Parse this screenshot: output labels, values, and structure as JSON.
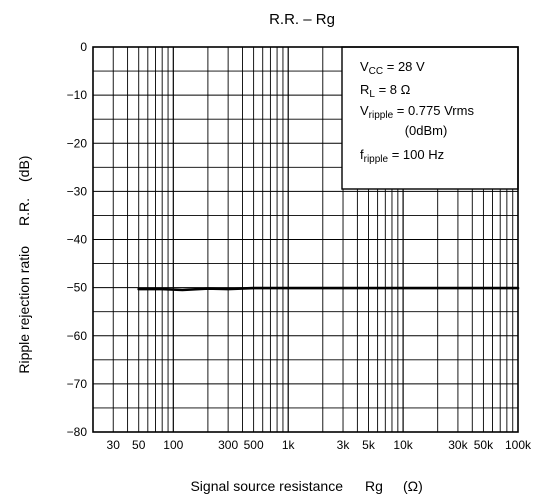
{
  "chart_data": {
    "type": "line",
    "title": "R.R. – Rg",
    "xlabel": "Signal source resistance",
    "xlabel_symbol": "Rg",
    "xlabel_unit": "(Ω)",
    "ylabel": "Ripple rejection ratio",
    "ylabel_symbol": "R.R.",
    "ylabel_unit": "(dB)",
    "x_scale": "log",
    "xlim": [
      20,
      100000
    ],
    "ylim": [
      -80,
      0
    ],
    "grid": true,
    "x_ticks": [
      {
        "value": 30,
        "label": "30"
      },
      {
        "value": 50,
        "label": "50"
      },
      {
        "value": 100,
        "label": "100"
      },
      {
        "value": 300,
        "label": "300"
      },
      {
        "value": 500,
        "label": "500"
      },
      {
        "value": 1000,
        "label": "1k"
      },
      {
        "value": 3000,
        "label": "3k"
      },
      {
        "value": 5000,
        "label": "5k"
      },
      {
        "value": 10000,
        "label": "10k"
      },
      {
        "value": 30000,
        "label": "30k"
      },
      {
        "value": 50000,
        "label": "50k"
      },
      {
        "value": 100000,
        "label": "100k"
      }
    ],
    "y_ticks": [
      {
        "value": 0,
        "label": "0"
      },
      {
        "value": -10,
        "label": "−10"
      },
      {
        "value": -20,
        "label": "−20"
      },
      {
        "value": -30,
        "label": "−30"
      },
      {
        "value": -40,
        "label": "−40"
      },
      {
        "value": -50,
        "label": "−50"
      },
      {
        "value": -60,
        "label": "−60"
      },
      {
        "value": -70,
        "label": "−70"
      },
      {
        "value": -80,
        "label": "−80"
      }
    ],
    "series": [
      {
        "x": [
          50,
          80,
          120,
          200,
          300,
          500,
          1000,
          3000,
          10000,
          30000,
          100000
        ],
        "y": [
          -50.3,
          -50.3,
          -50.5,
          -50.2,
          -50.3,
          -50.1,
          -50.1,
          -50.1,
          -50.1,
          -50.1,
          -50.1
        ]
      }
    ],
    "conditions": {
      "vcc": {
        "main": "V",
        "sub": "CC",
        "rest": " = 28 V"
      },
      "rl": {
        "main": "R",
        "sub": "L",
        "rest": " = 8 Ω"
      },
      "vripple": {
        "main": "V",
        "sub": "ripple",
        "rest": " = 0.775 Vrms"
      },
      "vripple_dbm": "(0dBm)",
      "fripple": {
        "main": "f",
        "sub": "ripple",
        "rest": " = 100 Hz"
      }
    }
  }
}
